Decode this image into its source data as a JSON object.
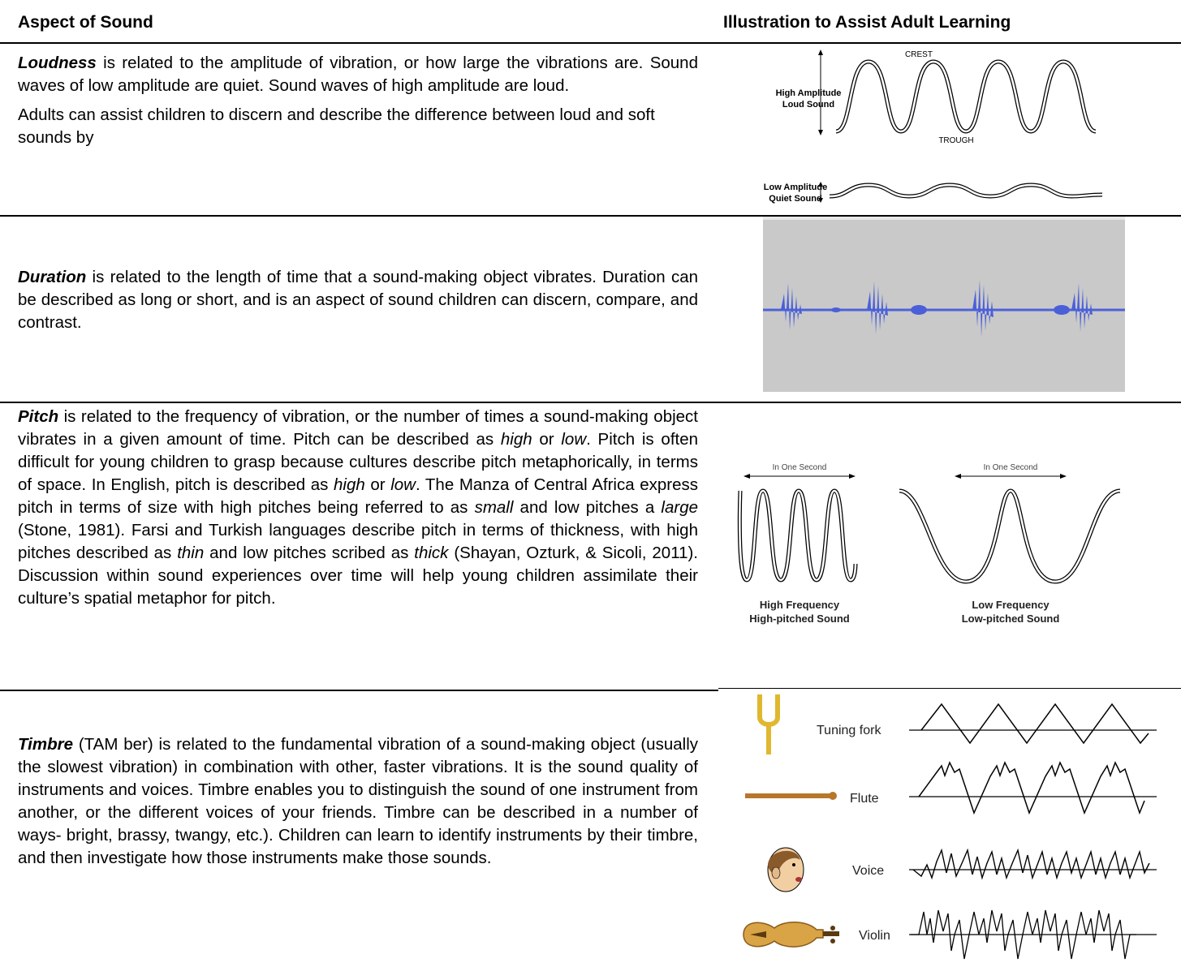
{
  "header": {
    "left": "Aspect of Sound",
    "right": "Illustration to Assist Adult Learning"
  },
  "rows": {
    "loudness": {
      "term": "Loudness",
      "text": " is related to the amplitude of vibration, or how large the vibrations are. Sound waves of low amplitude are quiet. Sound waves of high amplitude are loud.",
      "text2": "Adults can assist children to discern and describe the difference between loud and soft sounds by",
      "fig": {
        "crest": "CREST",
        "trough": "TROUGH",
        "high1": "High Amplitude",
        "high2": "Loud Sound",
        "low1": "Low Amplitude",
        "low2": "Quiet Sound"
      }
    },
    "duration": {
      "term": "Duration",
      "text": " is related to the length of time that a sound-making object vibrates. Duration can be described as long or short, and is an aspect of sound children can discern, compare, and contrast."
    },
    "pitch": {
      "term": "Pitch",
      "t1": " is related to the frequency of vibration, or the number of times a sound-making object vibrates in a given amount of time. Pitch can be described as ",
      "i1": "high",
      "t2": " or ",
      "i2": "low",
      "t3": ". Pitch is often difficult for young children to grasp because cultures describe pitch metaphorically, in terms of space. In English, pitch is described as ",
      "i3": "high",
      "t4": " or ",
      "i4": "low",
      "t5": ". The Manza of Central Africa express pitch in terms of size with high pitches being referred to as ",
      "i5": "small",
      "t6": " and low pitches a ",
      "i6": "large",
      "t7": " (Stone, 1981). Farsi and Turkish languages describe pitch in terms of thickness, with high pitches described as ",
      "i7": "thin",
      "t8": " and low pitches scribed as ",
      "i8": "thick",
      "t9": " (Shayan, Ozturk, & Sicoli, 2011). Discussion within sound experiences over time will help young children assimilate their culture’s spatial metaphor for pitch.",
      "fig": {
        "sec": "In One Second",
        "hf1": "High Frequency",
        "hf2": "High-pitched Sound",
        "lf1": "Low Frequency",
        "lf2": "Low-pitched Sound"
      }
    },
    "timbre": {
      "term": "Timbre",
      "text": " (TAM ber) is related to the fundamental vibration of a sound-making object (usually the slowest vibration) in combination with other, faster vibrations. It is the sound quality of instruments and voices. Timbre enables you to distinguish the sound of one instrument from another, or the different voices of your friends. Timbre can be described in a number of ways- bright, brassy, twangy, etc.). Children can learn to identify instruments by their timbre, and then investigate how those instruments make those sounds.",
      "fig": {
        "fork": "Tuning fork",
        "flute": "Flute",
        "voice": "Voice",
        "violin": "Violin"
      }
    }
  }
}
